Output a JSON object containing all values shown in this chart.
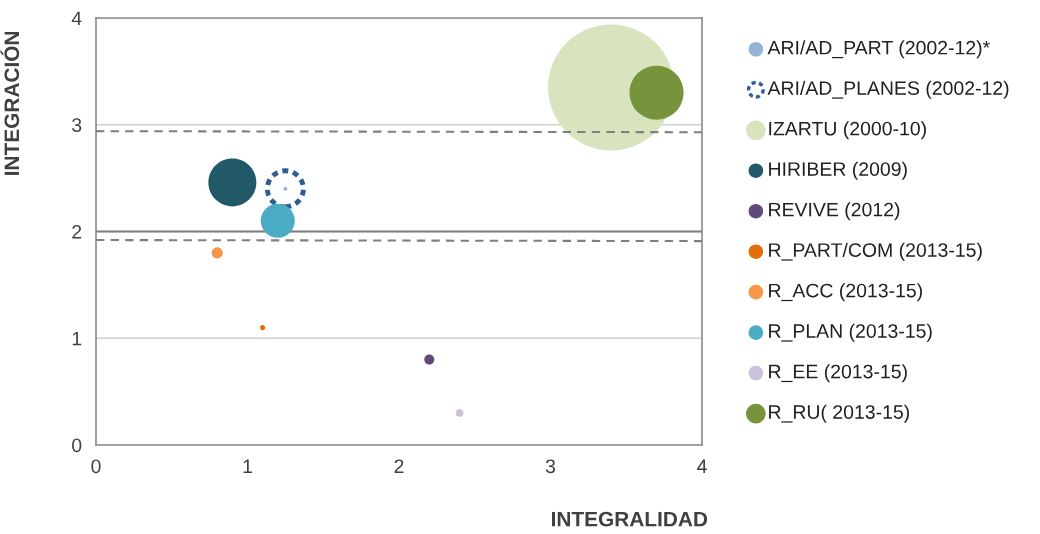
{
  "chart_data": {
    "type": "bubble",
    "xlabel": "INTEGRALIDAD",
    "ylabel": "INTEGRACIÓN",
    "xlim": [
      0,
      4
    ],
    "xticks": [
      0,
      1,
      2,
      3,
      4
    ],
    "ylim": [
      0,
      4
    ],
    "yticks": [
      0,
      1,
      2,
      3,
      4
    ],
    "grid": "y",
    "legend": "right",
    "ref_lines": [
      {
        "axis": "y",
        "value": 2,
        "color": "#7f7f7f",
        "line_style": "solid"
      }
    ],
    "series": [
      {
        "name": "ARI/AD_PART (2002-12)*",
        "color": "#95b3d7",
        "x": [
          1.25
        ],
        "values": [
          2.4
        ],
        "sizes": [
          0.001
        ]
      },
      {
        "name": "ARI/AD_PLANES (2002-12)",
        "color": "#2e5c94",
        "line_style": "dashed",
        "x": [
          1.25
        ],
        "values": [
          2.4
        ],
        "sizes": [
          0.082
        ]
      },
      {
        "name": "IZARTU (2000-10)",
        "color": "#d7e4bd",
        "x": [
          3.4
        ],
        "values": [
          3.35
        ],
        "sizes": [
          1
        ]
      },
      {
        "name": "HIRIBER (2009)",
        "color": "#215968",
        "x": [
          0.9
        ],
        "values": [
          2.46
        ],
        "sizes": [
          0.145
        ]
      },
      {
        "name": "REVIVE (2012)",
        "color": "#604a7b",
        "x": [
          2.2
        ],
        "values": [
          0.8
        ],
        "sizes": [
          0.0063
        ]
      },
      {
        "name": "R_PART/COM (2013-15)",
        "color": "#e46c0a",
        "x": [
          1.1
        ],
        "values": [
          1.1
        ],
        "sizes": [
          0.0017
        ]
      },
      {
        "name": "R_ACC (2013-15)",
        "color": "#f79646",
        "x": [
          0.8
        ],
        "values": [
          1.8
        ],
        "sizes": [
          0.0079
        ]
      },
      {
        "name": "R_PLAN (2013-15)",
        "color": "#4bacc6",
        "x": [
          1.2
        ],
        "values": [
          2.1
        ],
        "sizes": [
          0.073
        ]
      },
      {
        "name": "R_EE (2013-15)",
        "color": "#ccc1da",
        "x": [
          2.4
        ],
        "values": [
          0.3
        ],
        "sizes": [
          0.004
        ]
      },
      {
        "name": "R_RU( 2013-15)",
        "color": "#77933c",
        "x": [
          3.7
        ],
        "values": [
          3.3
        ],
        "sizes": [
          0.184
        ]
      },
      {
        "type": "line",
        "color": "#7f7f7f",
        "line_style": "dashed",
        "x": [
          0,
          4
        ],
        "values": [
          2.94,
          2.93
        ]
      },
      {
        "type": "line",
        "color": "#7f7f7f",
        "line_style": "dashed",
        "x": [
          0,
          4
        ],
        "values": [
          1.92,
          1.91
        ]
      }
    ]
  }
}
